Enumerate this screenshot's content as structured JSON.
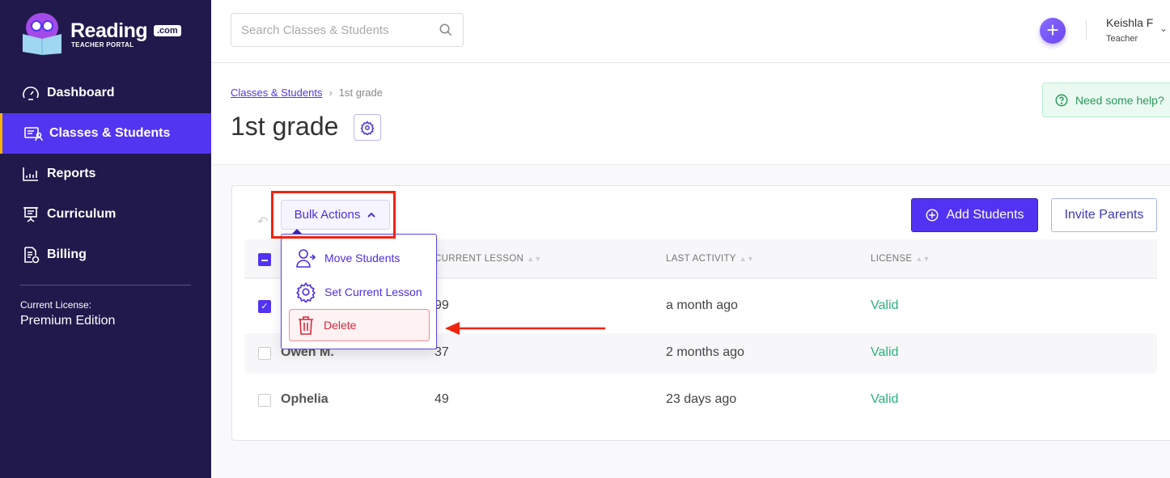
{
  "brand": {
    "name": "Reading",
    "suffix": ".com",
    "subtitle": "TEACHER PORTAL"
  },
  "sidebar": {
    "items": [
      {
        "label": "Dashboard",
        "icon": "speedometer-icon"
      },
      {
        "label": "Classes & Students",
        "icon": "id-card-icon",
        "active": true
      },
      {
        "label": "Reports",
        "icon": "bar-chart-icon"
      },
      {
        "label": "Curriculum",
        "icon": "presentation-board-icon"
      },
      {
        "label": "Billing",
        "icon": "invoice-icon"
      }
    ],
    "license_label": "Current License:",
    "license_value": "Premium Edition"
  },
  "topbar": {
    "search_placeholder": "Search Classes & Students",
    "user_name": "Keishla F",
    "user_role": "Teacher"
  },
  "breadcrumb": {
    "parent": "Classes & Students",
    "current": "1st grade"
  },
  "page_title": "1st grade",
  "help_label": "Need some help?",
  "toolbar": {
    "bulk_actions": "Bulk Actions",
    "add_students": "Add Students",
    "invite_parents": "Invite Parents"
  },
  "bulk_menu": [
    {
      "label": "Move Students",
      "icon": "move-user-icon"
    },
    {
      "label": "Set Current Lesson",
      "icon": "gear-icon"
    },
    {
      "label": "Delete",
      "icon": "trash-icon"
    }
  ],
  "table": {
    "columns": [
      "CURRENT LESSON",
      "LAST ACTIVITY",
      "LICENSE"
    ],
    "rows": [
      {
        "name": "",
        "lesson": "99",
        "activity": "a month ago",
        "license": "Valid",
        "checked": true
      },
      {
        "name": "Owen M.",
        "lesson": "37",
        "activity": "2 months ago",
        "license": "Valid",
        "checked": false
      },
      {
        "name": "Ophelia",
        "lesson": "49",
        "activity": "23 days ago",
        "license": "Valid",
        "checked": false
      }
    ]
  },
  "colors": {
    "sidebar": "#21194c",
    "accent": "#5232f3",
    "active_marker": "#f5b300",
    "valid": "#2bb07a",
    "delete": "#d8283d",
    "annotation": "#f0230f"
  }
}
